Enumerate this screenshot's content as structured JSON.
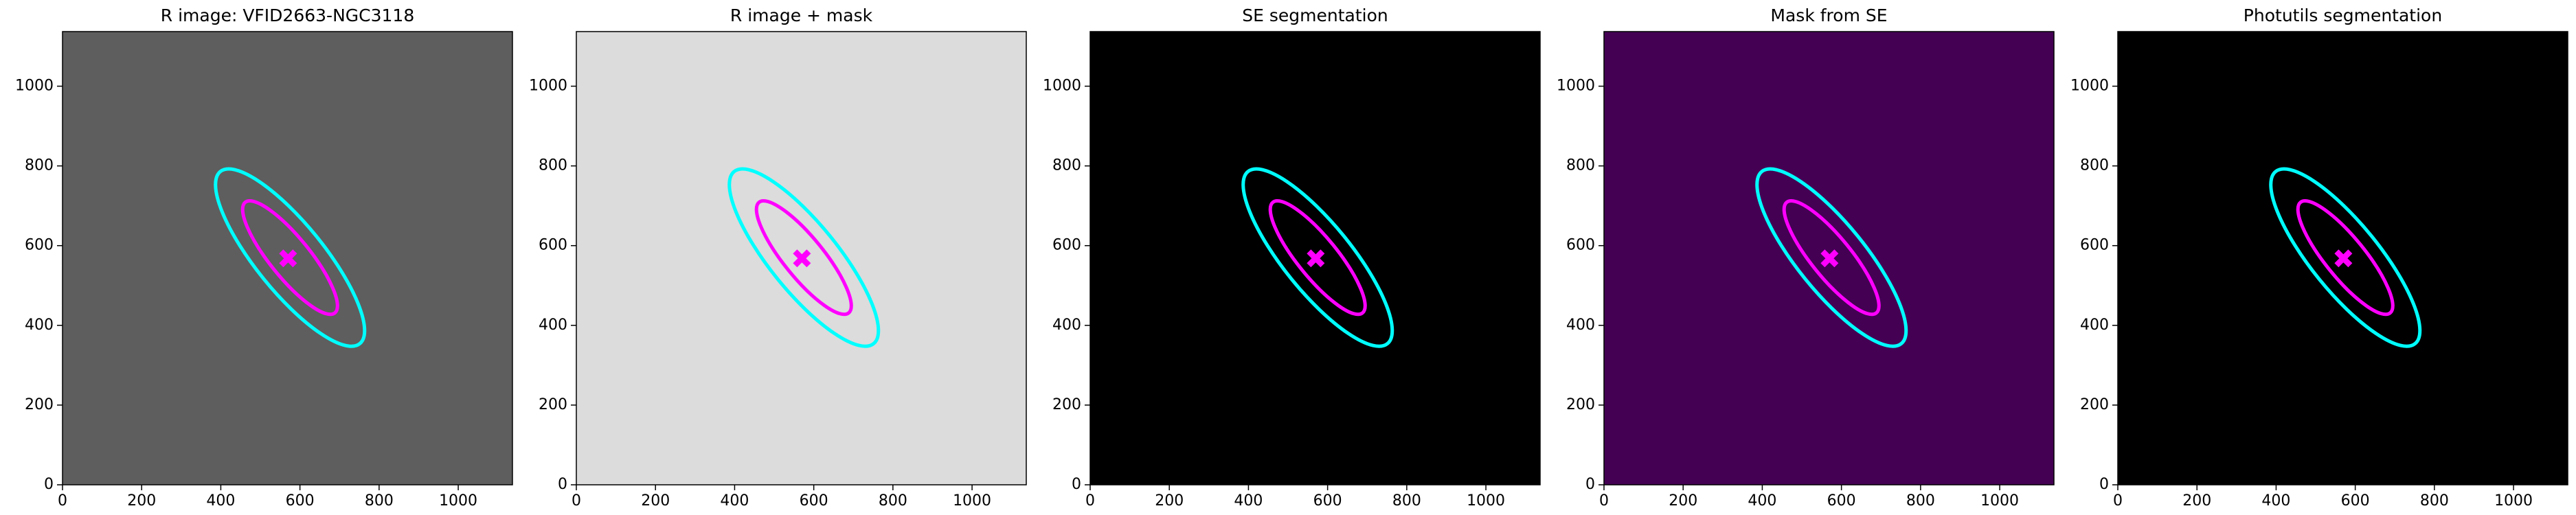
{
  "chart_data": [
    {
      "type": "image",
      "title": "R image: VFID2663-NGC3118",
      "background": "#5e5e5e",
      "xlim": [
        0,
        1137
      ],
      "ylim": [
        0,
        1137
      ],
      "xticks": [
        0,
        200,
        400,
        600,
        800,
        1000
      ],
      "yticks": [
        0,
        200,
        400,
        600,
        800,
        1000
      ],
      "ellipses": [
        {
          "color": "#00ffff",
          "x": 575,
          "y": 570,
          "a": 280,
          "b": 85,
          "angle": 129
        },
        {
          "color": "#ff00ff",
          "x": 575,
          "y": 570,
          "a": 180,
          "b": 50,
          "angle": 129
        }
      ],
      "marker": {
        "color": "#ff00ff",
        "x": 570,
        "y": 568
      }
    },
    {
      "type": "image",
      "title": "R image + mask",
      "background": "#dcdcdc",
      "xlim": [
        0,
        1137
      ],
      "ylim": [
        0,
        1137
      ],
      "xticks": [
        0,
        200,
        400,
        600,
        800,
        1000
      ],
      "yticks": [
        0,
        200,
        400,
        600,
        800,
        1000
      ],
      "ellipses": [
        {
          "color": "#00ffff",
          "x": 575,
          "y": 570,
          "a": 280,
          "b": 85,
          "angle": 129
        },
        {
          "color": "#ff00ff",
          "x": 575,
          "y": 570,
          "a": 180,
          "b": 50,
          "angle": 129
        }
      ],
      "marker": {
        "color": "#ff00ff",
        "x": 570,
        "y": 568
      }
    },
    {
      "type": "image",
      "title": "SE segmentation",
      "background": "#000000",
      "xlim": [
        0,
        1137
      ],
      "ylim": [
        0,
        1137
      ],
      "xticks": [
        0,
        200,
        400,
        600,
        800,
        1000
      ],
      "yticks": [
        0,
        200,
        400,
        600,
        800,
        1000
      ],
      "ellipses": [
        {
          "color": "#00ffff",
          "x": 575,
          "y": 570,
          "a": 280,
          "b": 85,
          "angle": 129
        },
        {
          "color": "#ff00ff",
          "x": 575,
          "y": 570,
          "a": 180,
          "b": 50,
          "angle": 129
        }
      ],
      "marker": {
        "color": "#ff00ff",
        "x": 570,
        "y": 568
      }
    },
    {
      "type": "image",
      "title": "Mask from SE",
      "background": "#440154",
      "xlim": [
        0,
        1137
      ],
      "ylim": [
        0,
        1137
      ],
      "xticks": [
        0,
        200,
        400,
        600,
        800,
        1000
      ],
      "yticks": [
        0,
        200,
        400,
        600,
        800,
        1000
      ],
      "ellipses": [
        {
          "color": "#00ffff",
          "x": 575,
          "y": 570,
          "a": 280,
          "b": 85,
          "angle": 129
        },
        {
          "color": "#ff00ff",
          "x": 575,
          "y": 570,
          "a": 180,
          "b": 50,
          "angle": 129
        }
      ],
      "marker": {
        "color": "#ff00ff",
        "x": 570,
        "y": 568
      }
    },
    {
      "type": "image",
      "title": "Photutils segmentation",
      "background": "#000000",
      "xlim": [
        0,
        1137
      ],
      "ylim": [
        0,
        1137
      ],
      "xticks": [
        0,
        200,
        400,
        600,
        800,
        1000
      ],
      "yticks": [
        0,
        200,
        400,
        600,
        800,
        1000
      ],
      "ellipses": [
        {
          "color": "#00ffff",
          "x": 575,
          "y": 570,
          "a": 280,
          "b": 85,
          "angle": 129
        },
        {
          "color": "#ff00ff",
          "x": 575,
          "y": 570,
          "a": 180,
          "b": 50,
          "angle": 129
        }
      ],
      "marker": {
        "color": "#ff00ff",
        "x": 570,
        "y": 568
      }
    }
  ]
}
